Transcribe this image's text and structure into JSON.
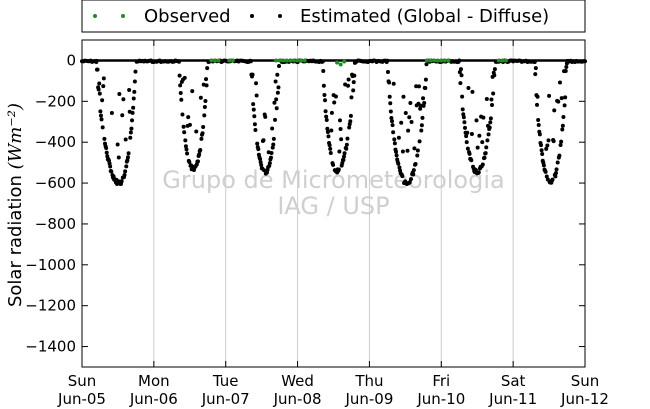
{
  "chart_data": {
    "type": "scatter",
    "title": "",
    "ylabel": "Solar radiation",
    "ylabel_unit": "(Wm⁻²)",
    "xlabel": "",
    "ylim": [
      -1500,
      100
    ],
    "y_ticks": [
      0,
      -200,
      -400,
      -600,
      -800,
      -1000,
      -1200,
      -1400
    ],
    "x_ticks": [
      {
        "day": "Sun",
        "date": "Jun-05"
      },
      {
        "day": "Mon",
        "date": "Jun-06"
      },
      {
        "day": "Tue",
        "date": "Jun-07"
      },
      {
        "day": "Wed",
        "date": "Jun-08"
      },
      {
        "day": "Thu",
        "date": "Jun-09"
      },
      {
        "day": "Fri",
        "date": "Jun-10"
      },
      {
        "day": "Sat",
        "date": "Jun-11"
      },
      {
        "day": "Sun",
        "date": "Jun-12"
      }
    ],
    "legend_position": "top",
    "grid": "vertical",
    "watermark": [
      "Grupo de Micrometeorologia",
      "IAG / USP"
    ],
    "series": [
      {
        "name": "Observed",
        "color": "#228b22",
        "marker": "dot",
        "points": [
          [
            1.8,
            0
          ],
          [
            1.85,
            0
          ],
          [
            1.9,
            0
          ],
          [
            2.05,
            0
          ],
          [
            2.1,
            0
          ],
          [
            2.7,
            0
          ],
          [
            2.75,
            0
          ],
          [
            2.8,
            0
          ],
          [
            2.85,
            0
          ],
          [
            2.9,
            0
          ],
          [
            2.95,
            0
          ],
          [
            3.0,
            0
          ],
          [
            3.05,
            0
          ],
          [
            3.1,
            0
          ],
          [
            3.55,
            -10
          ],
          [
            3.6,
            -20
          ],
          [
            3.65,
            -5
          ],
          [
            4.8,
            0
          ],
          [
            4.85,
            0
          ],
          [
            4.9,
            0
          ],
          [
            4.95,
            0
          ],
          [
            5.0,
            0
          ],
          [
            5.05,
            0
          ],
          [
            5.1,
            0
          ],
          [
            5.8,
            0
          ],
          [
            5.85,
            0
          ],
          [
            5.9,
            0
          ]
        ]
      },
      {
        "name": "Estimated (Global - Diffuse)",
        "color": "#000000",
        "marker": "dot",
        "days": [
          {
            "start": 0.2,
            "end": 0.75,
            "min": -600,
            "min_at": 0.52
          },
          {
            "start": 1.35,
            "end": 1.75,
            "min": -530,
            "min_at": 1.55
          },
          {
            "start": 2.35,
            "end": 2.75,
            "min": -545,
            "min_at": 2.55
          },
          {
            "start": 3.35,
            "end": 3.8,
            "min": -540,
            "min_at": 3.55
          },
          {
            "start": 4.25,
            "end": 4.8,
            "min": -600,
            "min_at": 4.52
          },
          {
            "start": 5.25,
            "end": 5.75,
            "min": -545,
            "min_at": 5.5
          },
          {
            "start": 6.3,
            "end": 6.75,
            "min": -600,
            "min_at": 6.52
          }
        ]
      }
    ]
  }
}
